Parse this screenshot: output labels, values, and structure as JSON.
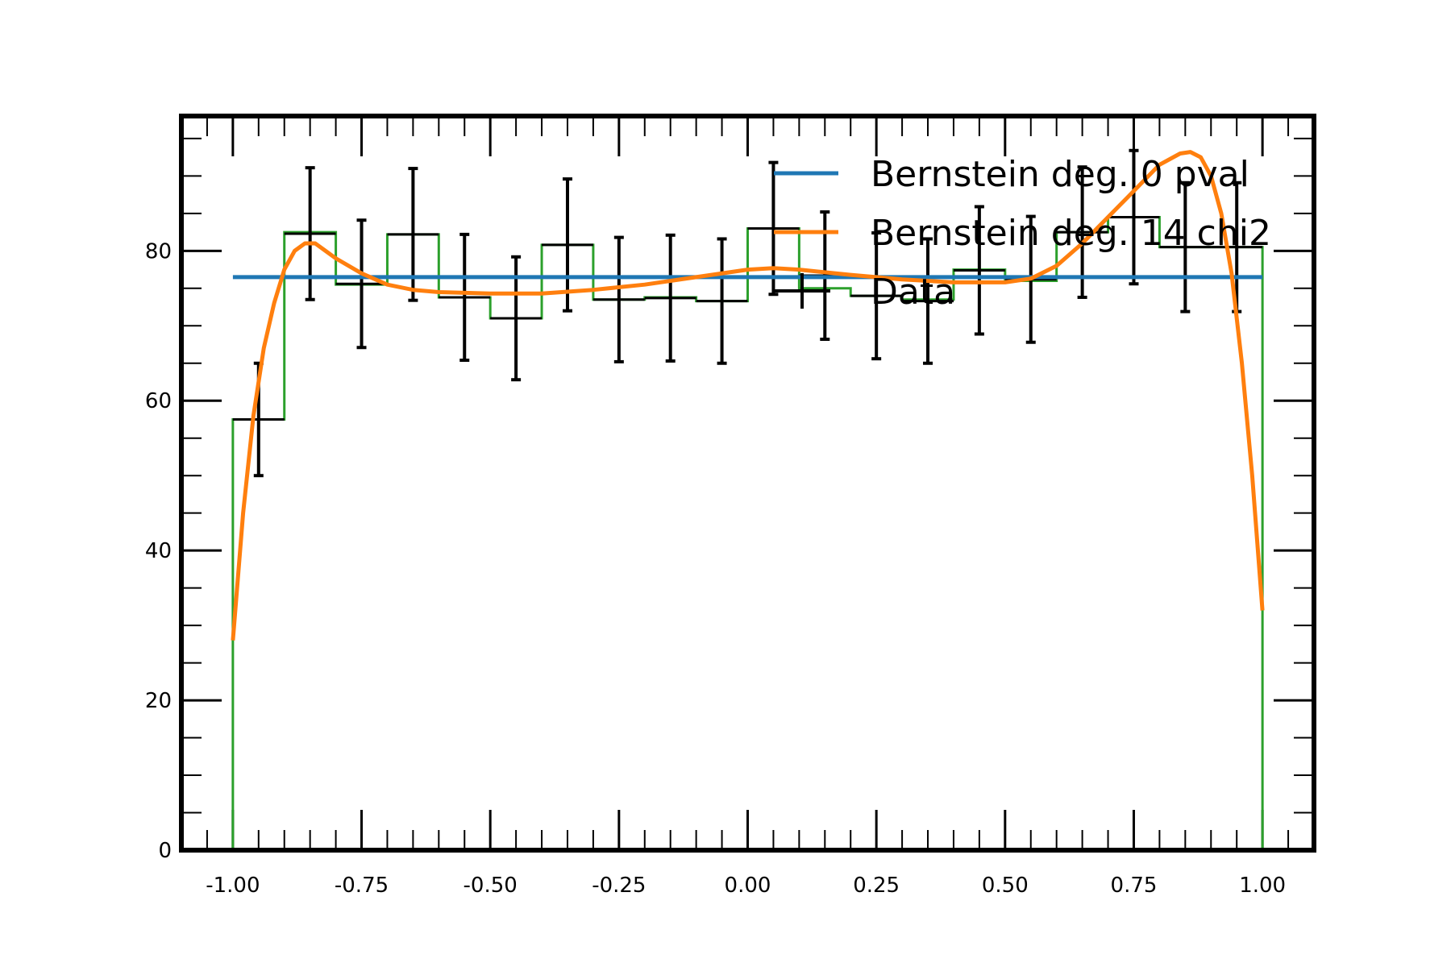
{
  "chart_data": {
    "type": "line",
    "title": "",
    "xlabel": "",
    "ylabel": "",
    "xlim": [
      -1.1,
      1.1
    ],
    "ylim": [
      0,
      98
    ],
    "xticks": [
      -1.0,
      -0.75,
      -0.5,
      -0.25,
      0.0,
      0.25,
      0.5,
      0.75,
      1.0
    ],
    "xtick_labels": [
      "-1.00",
      "-0.75",
      "-0.50",
      "-0.25",
      "0.00",
      "0.25",
      "0.50",
      "0.75",
      "1.00"
    ],
    "yticks": [
      0,
      20,
      40,
      60,
      80
    ],
    "ytick_labels": [
      "0",
      "20",
      "40",
      "60",
      "80"
    ],
    "grid": false,
    "legend_position": "top-right",
    "series": [
      {
        "name": "Bernstein deg. 0 pval",
        "kind": "line",
        "color": "#1f77b4",
        "x": [
          -1.0,
          1.0
        ],
        "y": [
          76.5,
          76.5
        ]
      },
      {
        "name": "Bernstein deg. 14 chi2",
        "kind": "line",
        "color": "#ff7f0e",
        "x": [
          -1.0,
          -0.98,
          -0.96,
          -0.94,
          -0.92,
          -0.9,
          -0.88,
          -0.86,
          -0.84,
          -0.82,
          -0.8,
          -0.75,
          -0.7,
          -0.65,
          -0.6,
          -0.5,
          -0.4,
          -0.3,
          -0.2,
          -0.1,
          0.0,
          0.05,
          0.1,
          0.2,
          0.3,
          0.4,
          0.5,
          0.55,
          0.6,
          0.65,
          0.7,
          0.75,
          0.8,
          0.84,
          0.86,
          0.88,
          0.9,
          0.92,
          0.94,
          0.96,
          0.98,
          1.0
        ],
        "y": [
          28,
          45,
          58,
          67,
          73,
          77.5,
          80,
          81,
          81,
          80,
          79,
          77,
          75.5,
          74.8,
          74.5,
          74.3,
          74.3,
          74.8,
          75.5,
          76.5,
          77.5,
          77.7,
          77.5,
          76.8,
          76.2,
          75.8,
          75.8,
          76.3,
          78,
          81,
          84.5,
          88,
          91.5,
          93,
          93.2,
          92.5,
          90,
          85,
          77,
          65,
          50,
          32
        ]
      },
      {
        "name": "",
        "kind": "step",
        "color": "#2ca02c",
        "bin_edges": [
          -1.0,
          -0.9,
          -0.8,
          -0.7,
          -0.6,
          -0.5,
          -0.4,
          -0.3,
          -0.2,
          -0.1,
          0.0,
          0.1,
          0.2,
          0.3,
          0.4,
          0.5,
          0.6,
          0.7,
          0.8,
          0.9,
          1.0
        ],
        "values": [
          57.5,
          82.5,
          75.5,
          82.2,
          73.8,
          71,
          80.8,
          73.5,
          73.8,
          73.3,
          83,
          75,
          74,
          73.5,
          77.5,
          76,
          82.5,
          84.5,
          80.5,
          80.5
        ]
      },
      {
        "name": "Data",
        "kind": "errorbar",
        "color": "#000000",
        "x": [
          -0.95,
          -0.85,
          -0.75,
          -0.65,
          -0.55,
          -0.45,
          -0.35,
          -0.25,
          -0.15,
          -0.05,
          0.05,
          0.15,
          0.25,
          0.35,
          0.45,
          0.55,
          0.65,
          0.75,
          0.85,
          0.95
        ],
        "y": [
          57.5,
          82.3,
          75.6,
          82.2,
          73.8,
          71,
          80.8,
          73.5,
          73.7,
          73.3,
          83,
          76.7,
          74,
          73.3,
          77.4,
          76.2,
          82.5,
          84.5,
          80.5,
          80.5
        ],
        "yerr": [
          7.5,
          8.8,
          8.5,
          8.8,
          8.4,
          8.2,
          8.8,
          8.3,
          8.4,
          8.3,
          8.8,
          8.5,
          8.4,
          8.3,
          8.5,
          8.4,
          8.7,
          8.9,
          8.6,
          8.6
        ]
      }
    ],
    "legend": [
      {
        "label": "Bernstein deg. 0 pval",
        "color": "#1f77b4",
        "marker": "line"
      },
      {
        "label": "Bernstein deg. 14 chi2",
        "color": "#ff7f0e",
        "marker": "line"
      },
      {
        "label": "Data",
        "color": "#000000",
        "marker": "errorbar"
      }
    ]
  }
}
